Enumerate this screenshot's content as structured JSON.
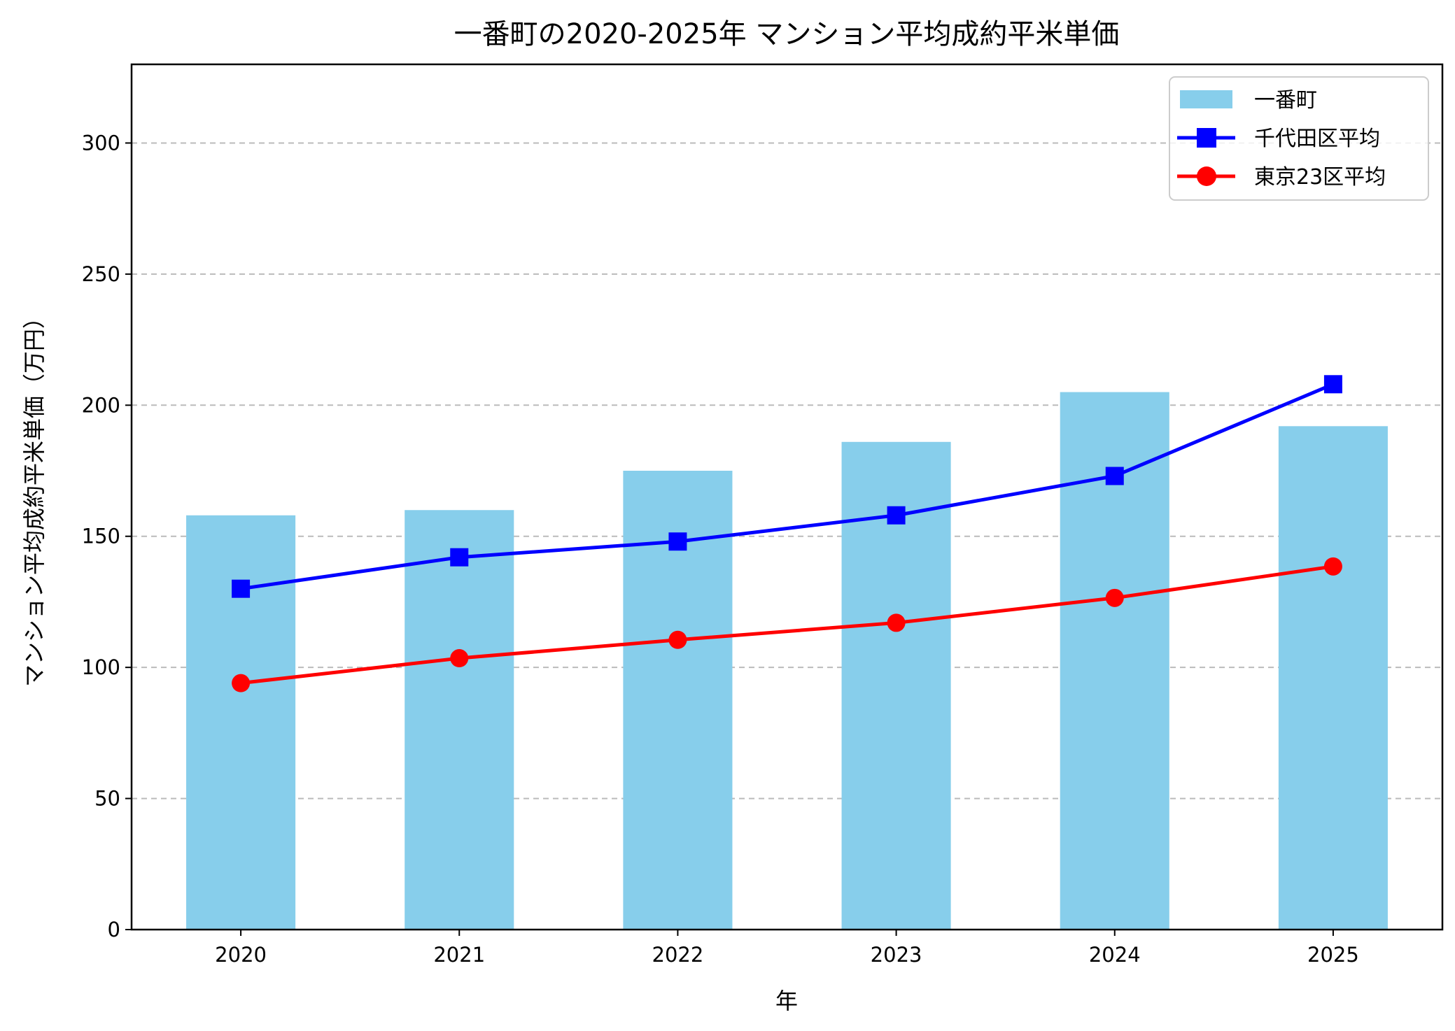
{
  "chart_data": {
    "type": "bar+line",
    "title": "一番町の2020-2025年 マンション平均成約平米単価",
    "xlabel": "年",
    "ylabel": "マンション平均成約平米単価（万円）",
    "categories": [
      "2020",
      "2021",
      "2022",
      "2023",
      "2024",
      "2025"
    ],
    "ylim": [
      0,
      330
    ],
    "yticks": [
      0,
      50,
      100,
      150,
      200,
      250,
      300
    ],
    "grid": "y-dashed",
    "legend_position": "top-right",
    "series": [
      {
        "name": "一番町",
        "kind": "bar",
        "color": "#87CEEB",
        "values": [
          158,
          160,
          175,
          186,
          205,
          192
        ]
      },
      {
        "name": "千代田区平均",
        "kind": "line",
        "marker": "square",
        "color": "#0000FF",
        "values": [
          130,
          142,
          148,
          158,
          173,
          208
        ]
      },
      {
        "name": "東京23区平均",
        "kind": "line",
        "marker": "circle",
        "color": "#FF0000",
        "values": [
          94,
          103.5,
          110.5,
          117,
          126.5,
          138.5
        ]
      }
    ]
  }
}
